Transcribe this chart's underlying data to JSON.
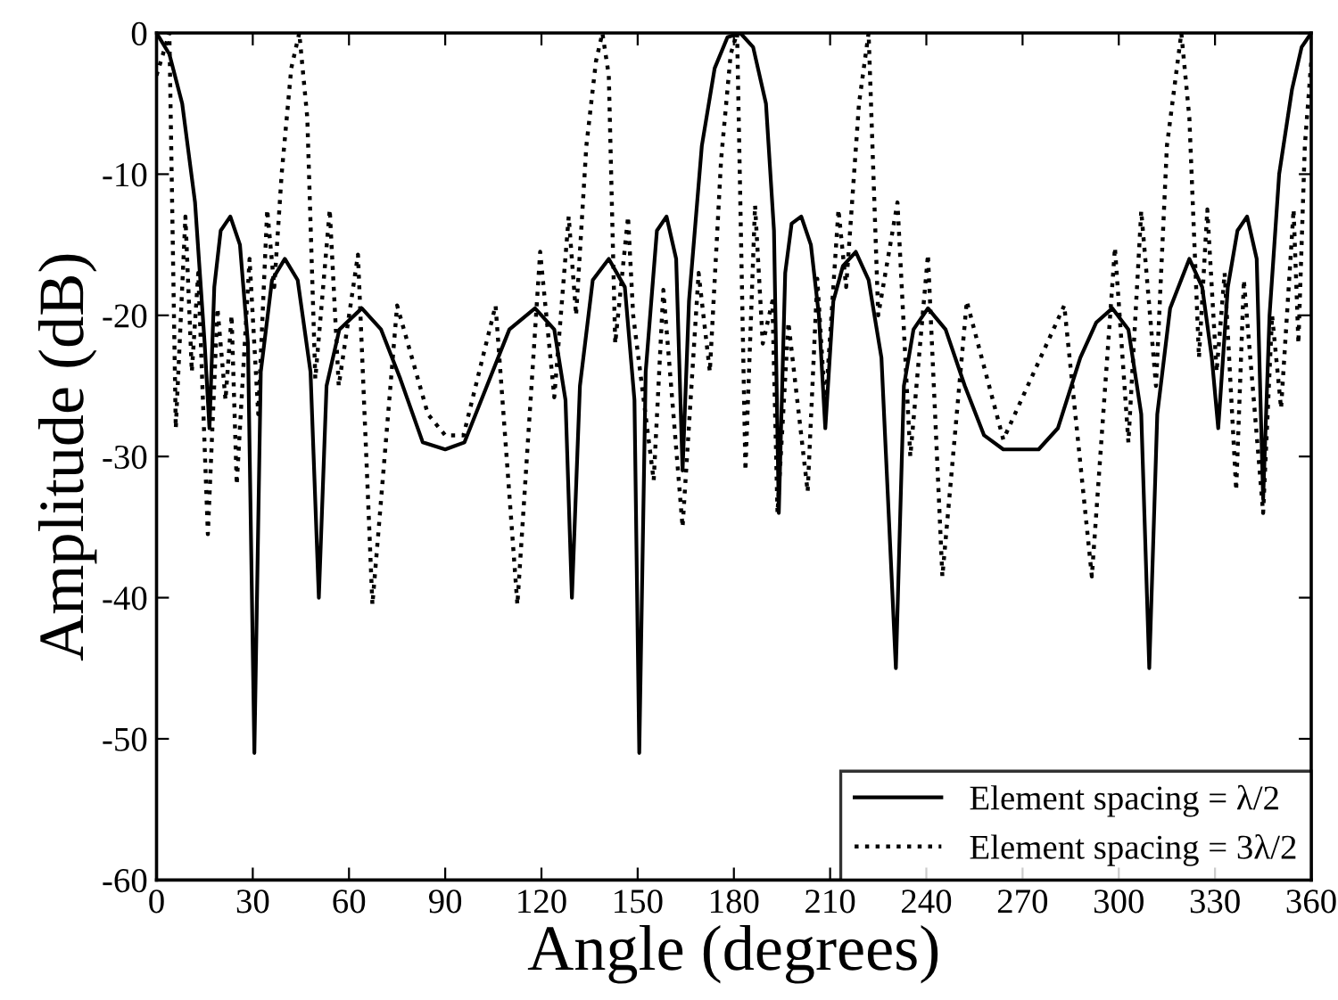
{
  "chart_data": {
    "type": "line",
    "xlabel": "Angle (degrees)",
    "ylabel": "Amplitude (dB)",
    "xlim": [
      0,
      360
    ],
    "ylim": [
      -60,
      0
    ],
    "xticks": [
      0,
      30,
      60,
      90,
      120,
      150,
      180,
      210,
      240,
      270,
      300,
      330,
      360
    ],
    "yticks": [
      -60,
      -50,
      -40,
      -30,
      -20,
      -10,
      0
    ],
    "grid": false,
    "legend": "bottom right",
    "marker": "none",
    "series": [
      {
        "name": "Element spacing = λ/2",
        "color": "#000000",
        "line_style": "solid",
        "x": [
          0,
          4,
          8,
          12,
          15,
          16.5,
          18,
          20,
          23,
          26,
          28.5,
          30.5,
          32.5,
          36,
          40,
          44,
          48,
          50.6,
          53,
          57,
          64,
          70,
          76,
          83,
          90,
          96,
          103,
          110,
          118,
          124,
          127.5,
          129.5,
          132,
          136,
          141,
          146,
          149,
          150.5,
          152.5,
          156,
          159,
          162,
          164,
          166,
          170,
          174,
          178,
          182,
          186,
          190,
          192.5,
          194,
          196,
          198,
          201,
          204,
          206.5,
          208.5,
          211,
          214,
          218,
          222,
          226,
          230.5,
          233,
          236,
          240.5,
          246,
          252,
          258,
          264,
          275,
          281,
          288,
          293,
          298,
          303,
          307,
          309.5,
          312,
          316,
          322,
          326,
          329,
          331,
          334,
          337,
          340,
          343,
          345,
          347,
          350,
          354,
          357,
          360
        ],
        "values": [
          0,
          -1.5,
          -5,
          -12,
          -22,
          -28,
          -18,
          -14,
          -13,
          -15,
          -22,
          -51,
          -24,
          -17.5,
          -16,
          -17.5,
          -24,
          -40,
          -25,
          -21,
          -19.5,
          -21,
          -24.5,
          -29,
          -29.5,
          -29,
          -25,
          -21,
          -19.5,
          -21,
          -26,
          -40,
          -25,
          -17.5,
          -16,
          -18,
          -26,
          -51,
          -24,
          -14,
          -13,
          -16,
          -31,
          -19,
          -8,
          -2.5,
          -0.3,
          0,
          -1,
          -5,
          -14,
          -34,
          -17,
          -13.5,
          -13,
          -15,
          -20,
          -28,
          -19,
          -16.5,
          -15.5,
          -17.5,
          -23,
          -45,
          -25,
          -21,
          -19.5,
          -21,
          -25,
          -28.5,
          -29.5,
          -29.5,
          -28,
          -23,
          -20.5,
          -19.5,
          -21,
          -27,
          -45,
          -27,
          -19.5,
          -16,
          -18,
          -23,
          -28,
          -18,
          -14,
          -13,
          -16,
          -33,
          -20,
          -10,
          -4,
          -1,
          0
        ]
      },
      {
        "name": "Element spacing = 3λ/2",
        "color": "#000000",
        "line_style": "dotted",
        "x": [
          0,
          4,
          6,
          9,
          11,
          13,
          16,
          19,
          21.5,
          23.4,
          25,
          29,
          31.7,
          34.5,
          36.7,
          39,
          42,
          44.5,
          47,
          49.5,
          54,
          56.8,
          62.8,
          67.3,
          75,
          84.6,
          90,
          95.7,
          105.7,
          112.5,
          119.6,
          124,
          128.5,
          130.8,
          134,
          137,
          139,
          141,
          143,
          147,
          148.6,
          155,
          158,
          164,
          169,
          172.5,
          176,
          179,
          181,
          183.6,
          186.6,
          189,
          192,
          193.6,
          197,
          203,
          206,
          208.5,
          212.6,
          215,
          219,
          222,
          225,
          231,
          235,
          240.5,
          245,
          252.6,
          264,
          283,
          291.6,
          298.8,
          303,
          307,
          311.6,
          315,
          319.5,
          322,
          325,
          327.6,
          330.5,
          333,
          336.6,
          339,
          345,
          347.8,
          350.6,
          354.5,
          356,
          358,
          360
        ],
        "values": [
          -3,
          0,
          -28,
          -13,
          -24,
          -17,
          -35.5,
          -19.5,
          -26,
          -20,
          -32,
          -16,
          -27,
          -12.5,
          -18,
          -10,
          -2.5,
          0,
          -6,
          -24.5,
          -12.5,
          -25,
          -15.7,
          -40.5,
          -19.3,
          -27,
          -28.5,
          -28.5,
          -19.3,
          -40.5,
          -15.5,
          -25.8,
          -13,
          -20,
          -8,
          -2,
          0,
          -3,
          -22,
          -13,
          -20,
          -31.7,
          -18.2,
          -35,
          -17,
          -24,
          -9,
          -1.5,
          0,
          -31,
          -12.2,
          -22,
          -19,
          -34,
          -20.5,
          -32.5,
          -17.4,
          -26.6,
          -12.5,
          -18,
          -5,
          0,
          -20,
          -12,
          -30,
          -15.7,
          -38.5,
          -19,
          -28.8,
          -19.3,
          -38.5,
          -15.2,
          -29,
          -12.6,
          -25,
          -8,
          0,
          -6,
          -23,
          -12.5,
          -24,
          -17,
          -32.4,
          -17.5,
          -34,
          -20,
          -26.6,
          -12.5,
          -22,
          -8,
          -2
        ]
      }
    ]
  }
}
